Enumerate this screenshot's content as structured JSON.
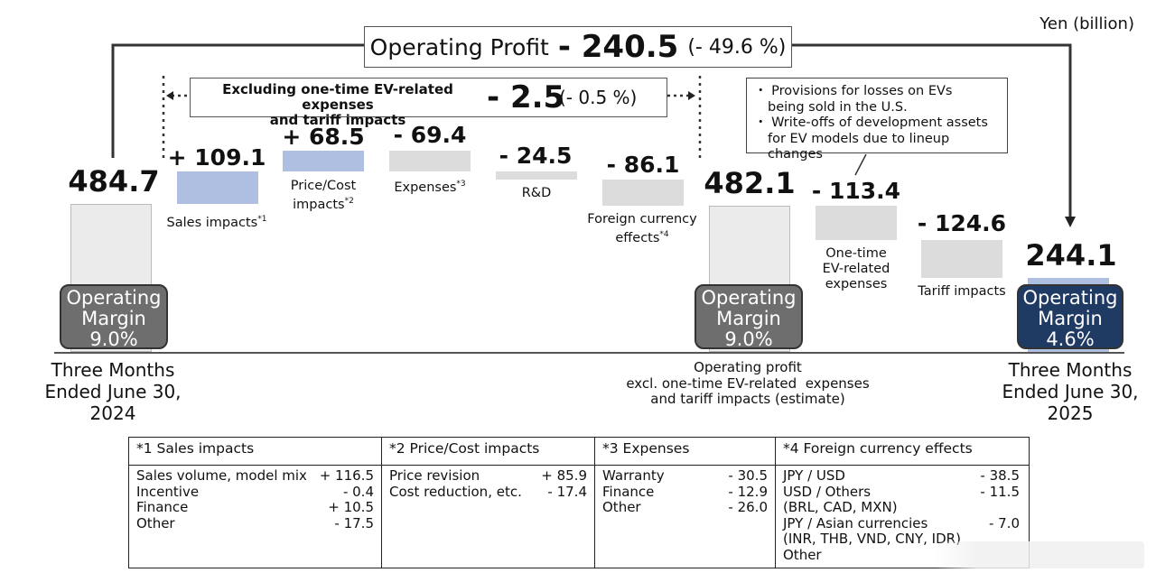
{
  "unit_label": "Yen (billion)",
  "operating_profit": {
    "label": "Operating Profit",
    "value": "- 240.5",
    "pct": "(- 49.6 %)"
  },
  "excluding": {
    "label_line1": "Excluding one-time EV-related expenses",
    "label_line2": "and tariff impacts",
    "value": "- 2.5",
    "pct": "(- 0.5 %)"
  },
  "start": {
    "value": "484.7",
    "margin_line1": "Operating",
    "margin_line2": "Margin",
    "margin_pct": "9.0%",
    "period_line1": "Three Months",
    "period_line2": "Ended June 30,",
    "period_line3": "2024"
  },
  "steps": [
    {
      "value": "+ 109.1",
      "name": "Sales impacts",
      "note": "*1"
    },
    {
      "value": "+ 68.5",
      "name_line1": "Price/Cost",
      "name_line2": "impacts",
      "note": "*2"
    },
    {
      "value": "- 69.4",
      "name": "Expenses",
      "note": "*3"
    },
    {
      "value": "- 24.5",
      "name": "R&D"
    },
    {
      "value": "- 86.1",
      "name_line1": "Foreign currency",
      "name_line2": "effects",
      "note": "*4"
    }
  ],
  "mid": {
    "value": "482.1",
    "margin_line1": "Operating",
    "margin_line2": "Margin",
    "margin_pct": "9.0%",
    "caption_line1": "Operating profit",
    "caption_line2": "excl. one-time EV-related  expenses",
    "caption_line3": "and tariff impacts (estimate)"
  },
  "ev_step": {
    "value": "- 113.4",
    "name_line1": "One-time",
    "name_line2": "EV-related",
    "name_line3": "expenses"
  },
  "tariff_step": {
    "value": "- 124.6",
    "name": "Tariff impacts"
  },
  "end": {
    "value": "244.1",
    "margin_line1": "Operating",
    "margin_line2": "Margin",
    "margin_pct": "4.6%",
    "period_line1": "Three Months",
    "period_line2": "Ended June 30,",
    "period_line3": "2025"
  },
  "callout": {
    "line1": "・ Provisions for losses on EVs",
    "line2": "being sold in the U.S.",
    "line3": "・ Write-offs of development assets",
    "line4": "for EV models due to lineup changes"
  },
  "notes": {
    "sales": {
      "title": "*1 Sales impacts",
      "rows": [
        {
          "label": "Sales volume, model mix",
          "value": "+ 116.5"
        },
        {
          "label": "Incentive",
          "value": "- 0.4"
        },
        {
          "label": "Finance",
          "value": "+ 10.5"
        },
        {
          "label": "Other",
          "value": "- 17.5"
        }
      ]
    },
    "price": {
      "title": "*2 Price/Cost impacts",
      "rows": [
        {
          "label": "Price revision",
          "value": "+ 85.9"
        },
        {
          "label": "Cost reduction, etc.",
          "value": "- 17.4"
        }
      ]
    },
    "expenses": {
      "title": "*3 Expenses",
      "rows": [
        {
          "label": "Warranty",
          "value": "- 30.5"
        },
        {
          "label": "Finance",
          "value": "- 12.9"
        },
        {
          "label": "Other",
          "value": "- 26.0"
        }
      ]
    },
    "fx": {
      "title": "*4 Foreign currency effects",
      "rows": [
        {
          "label": "JPY / USD",
          "value": "- 38.5"
        },
        {
          "label": "USD / Others",
          "value": "- 11.5"
        },
        {
          "label": "(BRL, CAD, MXN)",
          "value": ""
        },
        {
          "label": "JPY / Asian currencies",
          "value": "- 7.0"
        },
        {
          "label": "(INR, THB, VND, CNY, IDR)",
          "value": ""
        },
        {
          "label": "Other",
          "value": ""
        }
      ]
    }
  },
  "chart_data": {
    "type": "waterfall",
    "unit": "Yen (billion)",
    "categories": [
      "Three Months Ended June 30, 2024",
      "Sales impacts",
      "Price/Cost impacts",
      "Expenses",
      "R&D",
      "Foreign currency effects",
      "Operating profit excl. one-time EV-related expenses and tariff impacts (estimate)",
      "One-time EV-related expenses",
      "Tariff impacts",
      "Three Months Ended June 30, 2025"
    ],
    "values": [
      484.7,
      109.1,
      68.5,
      -69.4,
      -24.5,
      -86.1,
      482.1,
      -113.4,
      -124.6,
      244.1
    ],
    "operating_margin": {
      "2024": "9.0%",
      "estimate": "9.0%",
      "2025": "4.6%"
    },
    "colors": {
      "total": "#ebebeb",
      "increase": "#aebfe2",
      "decrease": "#dcdcdc",
      "margin_badge": "#6e6e6e",
      "final_badge": "#1f3a63"
    }
  }
}
